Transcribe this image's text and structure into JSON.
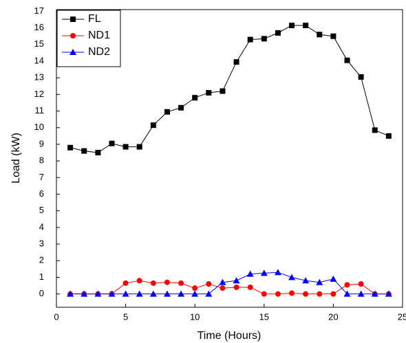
{
  "chart_data": {
    "type": "line",
    "x_label": "Time (Hours)",
    "y_label": "Load (kW)",
    "x": [
      1,
      2,
      3,
      4,
      5,
      6,
      7,
      8,
      9,
      10,
      11,
      12,
      13,
      14,
      15,
      16,
      17,
      18,
      19,
      20,
      21,
      22,
      23,
      24
    ],
    "series": [
      {
        "name": "FL",
        "color": "#000000",
        "marker": "square",
        "values": [
          8.8,
          8.6,
          8.5,
          9.05,
          8.85,
          8.85,
          10.15,
          10.95,
          11.2,
          11.8,
          12.1,
          12.2,
          13.95,
          15.3,
          15.35,
          15.7,
          16.15,
          16.15,
          15.6,
          15.5,
          14.05,
          13.05,
          9.85,
          9.5
        ]
      },
      {
        "name": "ND1",
        "color": "#ff0000",
        "marker": "circle",
        "values": [
          0,
          0,
          0,
          0,
          0.65,
          0.8,
          0.65,
          0.7,
          0.65,
          0.35,
          0.6,
          0.35,
          0.4,
          0.4,
          0,
          0,
          0.05,
          0,
          0,
          0,
          0.55,
          0.6,
          0,
          0
        ]
      },
      {
        "name": "ND2",
        "color": "#0000ff",
        "marker": "triangle",
        "values": [
          0,
          0,
          0,
          0,
          0,
          0,
          0,
          0,
          0,
          0,
          0,
          0.7,
          0.8,
          1.2,
          1.25,
          1.3,
          1.0,
          0.8,
          0.7,
          0.9,
          0,
          0,
          0,
          0
        ]
      }
    ],
    "xlim": [
      0,
      25
    ],
    "xticks": [
      0,
      5,
      10,
      15,
      20,
      25
    ],
    "ylim": [
      -0.8,
      17.1
    ],
    "yticks": [
      0,
      1,
      2,
      3,
      4,
      5,
      6,
      7,
      8,
      9,
      10,
      11,
      12,
      13,
      14,
      15,
      16,
      17
    ],
    "legend": "top-left"
  }
}
